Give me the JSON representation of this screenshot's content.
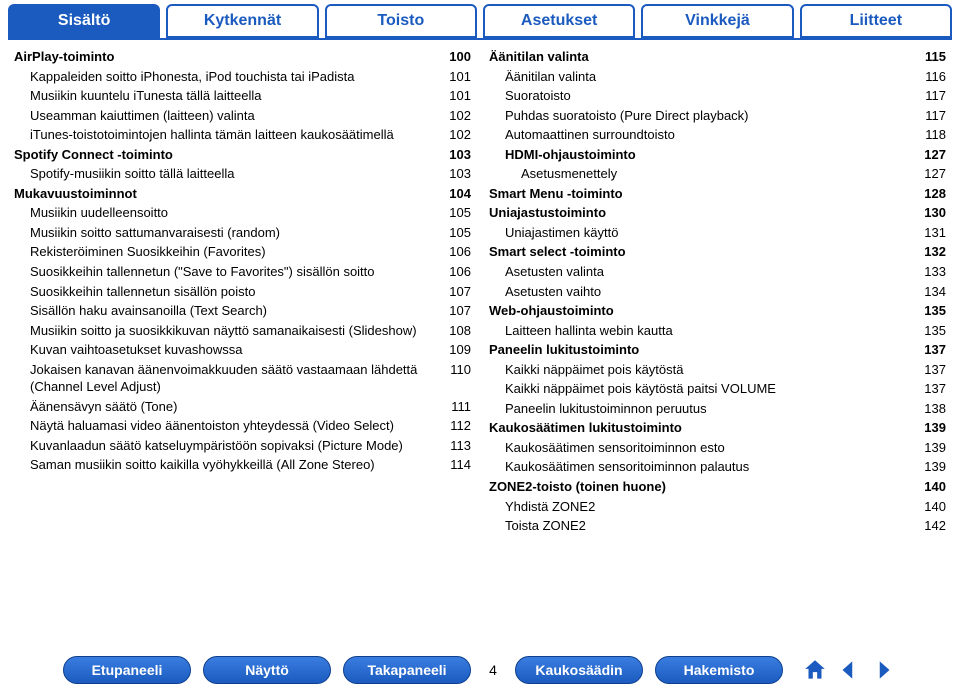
{
  "tabs": [
    {
      "label": "Sisältö",
      "active": true
    },
    {
      "label": "Kytkennät",
      "active": false
    },
    {
      "label": "Toisto",
      "active": false
    },
    {
      "label": "Asetukset",
      "active": false
    },
    {
      "label": "Vinkkejä",
      "active": false
    },
    {
      "label": "Liitteet",
      "active": false
    }
  ],
  "columns": {
    "left": [
      {
        "label": "AirPlay-toiminto",
        "page": "100",
        "bold": true,
        "indent": 0
      },
      {
        "label": "Kappaleiden soitto iPhonesta, iPod touchista tai iPadista",
        "page": "101",
        "indent": 1
      },
      {
        "label": "Musiikin kuuntelu iTunesta tällä laitteella",
        "page": "101",
        "indent": 1
      },
      {
        "label": "Useamman kaiuttimen (laitteen) valinta",
        "page": "102",
        "indent": 1
      },
      {
        "label": "iTunes-toistotoimintojen hallinta tämän laitteen kaukosäätimellä",
        "page": "102",
        "indent": 1
      },
      {
        "label": "Spotify Connect -toiminto",
        "page": "103",
        "bold": true,
        "indent": 0
      },
      {
        "label": "Spotify-musiikin soitto tällä laitteella",
        "page": "103",
        "indent": 1
      },
      {
        "label": "Mukavuustoiminnot",
        "page": "104",
        "bold": true,
        "indent": 0
      },
      {
        "label": "Musiikin uudelleensoitto",
        "page": "105",
        "indent": 1
      },
      {
        "label": "Musiikin soitto sattumanvaraisesti (random)",
        "page": "105",
        "indent": 1
      },
      {
        "label": "Rekisteröiminen Suosikkeihin (Favorites)",
        "page": "106",
        "indent": 1
      },
      {
        "label": "Suosikkeihin tallennetun (\"Save to Favorites\") sisällön soitto",
        "page": "106",
        "indent": 1
      },
      {
        "label": "Suosikkeihin tallennetun sisällön poisto",
        "page": "107",
        "indent": 1
      },
      {
        "label": "Sisällön haku avainsanoilla (Text Search)",
        "page": "107",
        "indent": 1
      },
      {
        "label": "Musiikin soitto ja suosikkikuvan näyttö samanaikaisesti (Slideshow)",
        "page": "108",
        "indent": 1
      },
      {
        "label": "Kuvan vaihtoasetukset kuvashowssa",
        "page": "109",
        "indent": 1
      },
      {
        "label": "Jokaisen kanavan äänenvoimakkuuden säätö vastaamaan lähdettä (Channel Level Adjust)",
        "page": "110",
        "indent": 1
      },
      {
        "label": "Äänensävyn säätö (Tone)",
        "page": "111",
        "indent": 1
      },
      {
        "label": "Näytä haluamasi video äänentoiston yhteydessä (Video Select)",
        "page": "112",
        "indent": 1
      },
      {
        "label": "Kuvanlaadun säätö katseluympäristöön sopivaksi (Picture Mode)",
        "page": "113",
        "indent": 1
      },
      {
        "label": "Saman musiikin soitto kaikilla vyöhykkeillä (All Zone Stereo)",
        "page": "114",
        "indent": 1
      }
    ],
    "right": [
      {
        "label": "Äänitilan valinta",
        "page": "115",
        "bold": true,
        "indent": 0
      },
      {
        "label": "Äänitilan valinta",
        "page": "116",
        "indent": 1
      },
      {
        "label": "Suoratoisto",
        "page": "117",
        "indent": 1
      },
      {
        "label": "Puhdas suoratoisto (Pure Direct playback)",
        "page": "117",
        "indent": 1
      },
      {
        "label": "Automaattinen surroundtoisto",
        "page": "118",
        "indent": 1
      },
      {
        "label": "HDMI-ohjaustoiminto",
        "page": "127",
        "bold": true,
        "indent": 1
      },
      {
        "label": "Asetusmenettely",
        "page": "127",
        "indent": 2
      },
      {
        "label": "Smart Menu -toiminto",
        "page": "128",
        "bold": true,
        "indent": 0
      },
      {
        "label": "Uniajastustoiminto",
        "page": "130",
        "bold": true,
        "indent": 0
      },
      {
        "label": "Uniajastimen käyttö",
        "page": "131",
        "indent": 1
      },
      {
        "label": "Smart select -toiminto",
        "page": "132",
        "bold": true,
        "indent": 0
      },
      {
        "label": "Asetusten valinta",
        "page": "133",
        "indent": 1
      },
      {
        "label": "Asetusten vaihto",
        "page": "134",
        "indent": 1
      },
      {
        "label": "Web-ohjaustoiminto",
        "page": "135",
        "bold": true,
        "indent": 0
      },
      {
        "label": "Laitteen hallinta webin kautta",
        "page": "135",
        "indent": 1
      },
      {
        "label": "Paneelin lukitustoiminto",
        "page": "137",
        "bold": true,
        "indent": 0
      },
      {
        "label": "Kaikki näppäimet pois käytöstä",
        "page": "137",
        "indent": 1
      },
      {
        "label": "Kaikki näppäimet pois käytöstä paitsi VOLUME",
        "page": "137",
        "indent": 1
      },
      {
        "label": "Paneelin lukitustoiminnon peruutus",
        "page": "138",
        "indent": 1
      },
      {
        "label": "Kaukosäätimen lukitustoiminto",
        "page": "139",
        "bold": true,
        "indent": 0
      },
      {
        "label": "Kaukosäätimen sensoritoiminnon esto",
        "page": "139",
        "indent": 1
      },
      {
        "label": "Kaukosäätimen sensoritoiminnon palautus",
        "page": "139",
        "indent": 1
      },
      {
        "label": "ZONE2-toisto (toinen huone)",
        "page": "140",
        "bold": true,
        "indent": 0
      },
      {
        "label": "Yhdistä ZONE2",
        "page": "140",
        "indent": 1
      },
      {
        "label": "Toista ZONE2",
        "page": "142",
        "indent": 1
      }
    ]
  },
  "footer": {
    "buttons": [
      "Etupaneeli",
      "Näyttö",
      "Takapaneeli",
      "Kaukosäädin",
      "Hakemisto"
    ],
    "page_number": "4",
    "icon_color": "#1b5bbf"
  }
}
